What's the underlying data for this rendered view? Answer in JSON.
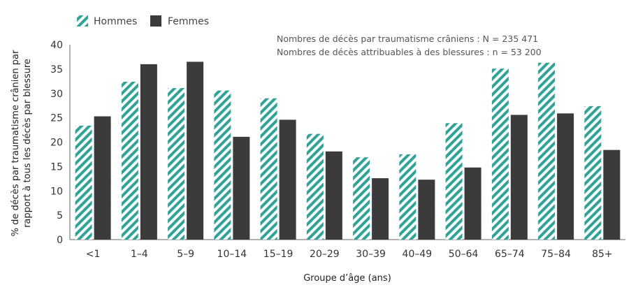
{
  "chart_data": {
    "type": "bar",
    "title": "",
    "xlabel": "Groupe d’âge (ans)",
    "ylabel_lines": [
      "% de décès par traumatisme crânien par",
      "rapport à tous les décès par blessure"
    ],
    "ylim": [
      0,
      40
    ],
    "yticks": [
      "0",
      "5",
      "10",
      "15",
      "20",
      "25",
      "30",
      "35",
      "40"
    ],
    "categories": [
      "<1",
      "1–4",
      "5–9",
      "10–14",
      "15–19",
      "20–29",
      "30–39",
      "40–49",
      "50–64",
      "65–74",
      "75–84",
      "85+"
    ],
    "series": [
      {
        "name": "Hommes",
        "values": [
          23.4,
          32.4,
          31.1,
          30.6,
          29.0,
          21.7,
          16.9,
          17.5,
          23.9,
          35.1,
          36.3,
          27.4
        ]
      },
      {
        "name": "Femmes",
        "values": [
          25.3,
          36.0,
          36.5,
          21.1,
          24.6,
          18.1,
          12.6,
          12.3,
          14.8,
          25.6,
          25.9,
          18.4
        ]
      }
    ],
    "notes": [
      "Nombres de décès par traumatisme crâniens : N = 235 471",
      "Nombres de décès attribuables à des blessures : n = 53 200"
    ],
    "legend_placement": "top-left",
    "grid": false,
    "colors": {
      "hommes_stripe": "#2aa597",
      "hommes_background": "#ffffff",
      "femmes": "#3b3b3b",
      "axis": "#666666"
    }
  }
}
